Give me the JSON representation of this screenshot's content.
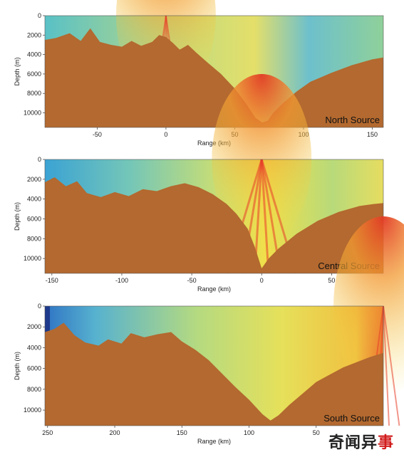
{
  "chart_data": [
    {
      "type": "heatmap",
      "panel_label": "North Source",
      "xlabel": "Range (km)",
      "ylabel": "Depth (m)",
      "xlim": [
        -88,
        158
      ],
      "ylim": [
        0,
        11500
      ],
      "x_ticks": [
        -50,
        0,
        50,
        100,
        150
      ],
      "y_ticks": [
        0,
        2000,
        4000,
        6000,
        8000,
        10000
      ],
      "source_position_km": 0,
      "seafloor_depth_profile": {
        "range_km": [
          -88,
          -80,
          -70,
          -62,
          -55,
          -48,
          -40,
          -32,
          -25,
          -18,
          -10,
          -5,
          0,
          5,
          10,
          16,
          22,
          30,
          40,
          50,
          58,
          65,
          70,
          74,
          78,
          85,
          95,
          105,
          120,
          135,
          150,
          158
        ],
        "depth_m": [
          2500,
          2300,
          1800,
          2600,
          1300,
          2700,
          3000,
          3200,
          2600,
          3100,
          2700,
          2000,
          2200,
          2800,
          3500,
          3000,
          3800,
          4800,
          6000,
          7500,
          9000,
          10500,
          11000,
          10800,
          10000,
          9000,
          7800,
          6800,
          5900,
          5100,
          4500,
          4300
        ]
      }
    },
    {
      "type": "heatmap",
      "panel_label": "Central Source",
      "xlabel": "Range (km)",
      "ylabel": "Depth (m)",
      "xlim": [
        -155,
        87
      ],
      "ylim": [
        0,
        11500
      ],
      "x_ticks": [
        -150,
        -100,
        -50,
        0,
        50
      ],
      "y_ticks": [
        0,
        2000,
        4000,
        6000,
        8000,
        10000
      ],
      "source_position_km": 0,
      "seafloor_depth_profile": {
        "range_km": [
          -155,
          -148,
          -140,
          -132,
          -125,
          -115,
          -105,
          -95,
          -85,
          -75,
          -65,
          -55,
          -45,
          -35,
          -25,
          -18,
          -10,
          -5,
          0,
          5,
          12,
          25,
          40,
          55,
          70,
          80,
          87
        ],
        "depth_m": [
          2300,
          1800,
          2700,
          2200,
          3400,
          3800,
          3300,
          3700,
          3000,
          3200,
          2700,
          2400,
          2800,
          3500,
          4500,
          5500,
          7000,
          8800,
          11000,
          10000,
          9000,
          7500,
          6200,
          5300,
          4700,
          4500,
          4400
        ]
      }
    },
    {
      "type": "heatmap",
      "panel_label": "South Source",
      "xlabel": "Range (km)",
      "ylabel": "Depth (m)",
      "xlim": [
        252,
        0
      ],
      "ylim": [
        0,
        11500
      ],
      "x_ticks": [
        250,
        200,
        150,
        100,
        50
      ],
      "y_ticks": [
        0,
        2000,
        4000,
        6000,
        8000,
        10000
      ],
      "source_position_km": 0,
      "seafloor_depth_profile": {
        "range_km": [
          252,
          245,
          238,
          230,
          222,
          212,
          205,
          195,
          188,
          178,
          168,
          158,
          150,
          140,
          130,
          120,
          110,
          100,
          90,
          84,
          78,
          70,
          60,
          50,
          40,
          30,
          20,
          10,
          0
        ],
        "depth_m": [
          2500,
          2200,
          1600,
          2800,
          3500,
          3800,
          3200,
          3600,
          2600,
          3000,
          2700,
          2500,
          3400,
          4200,
          5200,
          6500,
          7800,
          9000,
          10400,
          11000,
          10500,
          9500,
          8400,
          7300,
          6600,
          5900,
          5400,
          4900,
          4500
        ]
      }
    }
  ],
  "watermark": {
    "text_dark": "奇闻异",
    "text_red": "事"
  },
  "colors": {
    "seafloor": "#b3692f",
    "water_low": "#39a7d3",
    "water_mid": "#8fd08a",
    "water_high": "#f0e04a",
    "beam_hot": "#e8402a",
    "border_dark": "#1e3a8c"
  }
}
